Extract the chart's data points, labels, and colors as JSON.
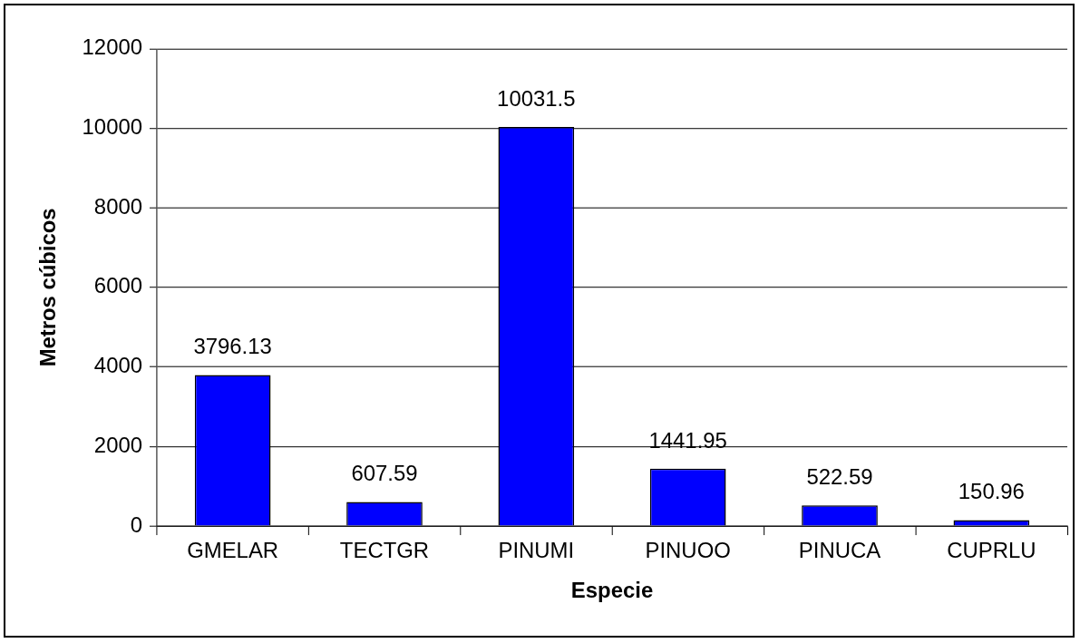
{
  "chart_data": {
    "type": "bar",
    "xlabel": "Especie",
    "ylabel": "Metros cúbicos",
    "categories": [
      "GMELAR",
      "TECTGR",
      "PINUMI",
      "PINUOO",
      "PINUCA",
      "CUPRLU"
    ],
    "values": [
      3796.13,
      607.59,
      10031.5,
      1441.95,
      522.59,
      150.96
    ],
    "color": "#0000ff",
    "ylim": [
      0,
      12000
    ],
    "yticks": [
      0,
      2000,
      4000,
      6000,
      8000,
      10000,
      12000
    ],
    "grid": "y",
    "data_labels": true,
    "legend": false
  }
}
